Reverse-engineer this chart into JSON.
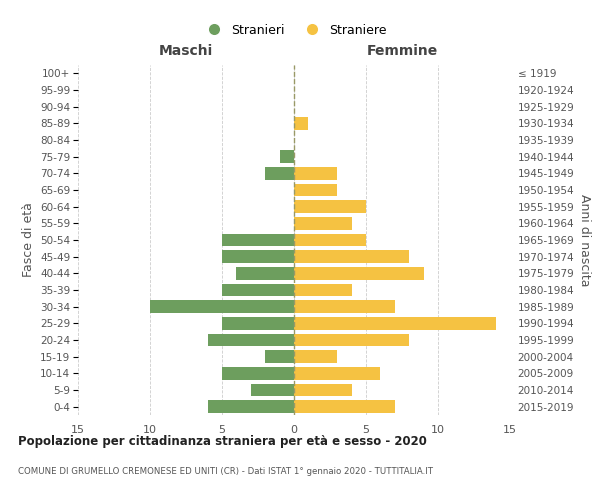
{
  "age_groups": [
    "100+",
    "95-99",
    "90-94",
    "85-89",
    "80-84",
    "75-79",
    "70-74",
    "65-69",
    "60-64",
    "55-59",
    "50-54",
    "45-49",
    "40-44",
    "35-39",
    "30-34",
    "25-29",
    "20-24",
    "15-19",
    "10-14",
    "5-9",
    "0-4"
  ],
  "birth_years": [
    "≤ 1919",
    "1920-1924",
    "1925-1929",
    "1930-1934",
    "1935-1939",
    "1940-1944",
    "1945-1949",
    "1950-1954",
    "1955-1959",
    "1960-1964",
    "1965-1969",
    "1970-1974",
    "1975-1979",
    "1980-1984",
    "1985-1989",
    "1990-1994",
    "1995-1999",
    "2000-2004",
    "2005-2009",
    "2010-2014",
    "2015-2019"
  ],
  "males": [
    0,
    0,
    0,
    0,
    0,
    1,
    2,
    0,
    0,
    0,
    5,
    5,
    4,
    5,
    10,
    5,
    6,
    2,
    5,
    3,
    6
  ],
  "females": [
    0,
    0,
    0,
    1,
    0,
    0,
    3,
    3,
    5,
    4,
    5,
    8,
    9,
    4,
    7,
    14,
    8,
    3,
    6,
    4,
    7
  ],
  "male_color": "#6d9e5e",
  "female_color": "#f5c242",
  "grid_color": "#cccccc",
  "center_line_color": "#999966",
  "background_color": "#ffffff",
  "title": "Popolazione per cittadinanza straniera per età e sesso - 2020",
  "subtitle": "COMUNE DI GRUMELLO CREMONESE ED UNITI (CR) - Dati ISTAT 1° gennaio 2020 - TUTTITALIA.IT",
  "xlabel_left": "Maschi",
  "xlabel_right": "Femmine",
  "ylabel_left": "Fasce di età",
  "ylabel_right": "Anni di nascita",
  "legend_males": "Stranieri",
  "legend_females": "Straniere",
  "xlim": 15
}
